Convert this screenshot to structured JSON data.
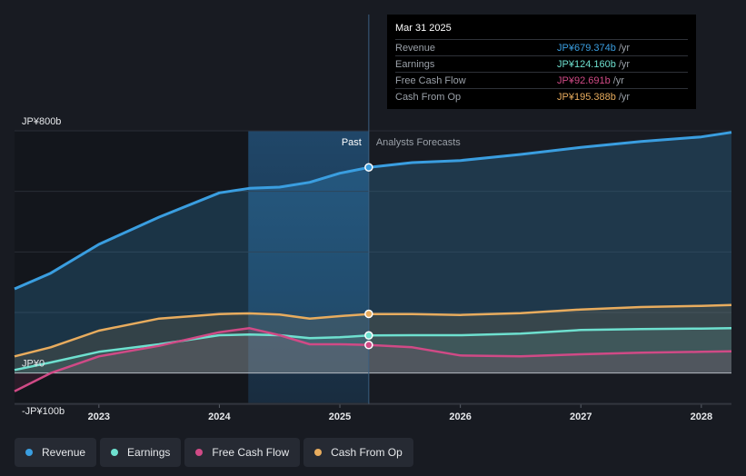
{
  "colors": {
    "background": "#181b22",
    "revenue": "#3a9ee0",
    "earnings": "#6ee0cf",
    "free_cash_flow": "#d04a86",
    "cash_from_op": "#e8ac5e",
    "grid": "#2c3038",
    "text": "#e6e8eb",
    "muted": "#9aa0a8"
  },
  "tooltip": {
    "date": "Mar 31 2025",
    "rows": [
      {
        "label": "Revenue",
        "value": "JP¥679.374b",
        "unit": "/yr",
        "color": "#3a9ee0"
      },
      {
        "label": "Earnings",
        "value": "JP¥124.160b",
        "unit": "/yr",
        "color": "#6ee0cf"
      },
      {
        "label": "Free Cash Flow",
        "value": "JP¥92.691b",
        "unit": "/yr",
        "color": "#d04a86"
      },
      {
        "label": "Cash From Op",
        "value": "JP¥195.388b",
        "unit": "/yr",
        "color": "#e8ac5e"
      }
    ]
  },
  "legend": [
    {
      "label": "Revenue",
      "color": "#3a9ee0",
      "icon": "dot-icon"
    },
    {
      "label": "Earnings",
      "color": "#6ee0cf",
      "icon": "dot-icon"
    },
    {
      "label": "Free Cash Flow",
      "color": "#d04a86",
      "icon": "dot-icon"
    },
    {
      "label": "Cash From Op",
      "color": "#e8ac5e",
      "icon": "dot-icon"
    }
  ],
  "chart_data": {
    "type": "area",
    "title": "",
    "xlabel": "",
    "ylabel": "",
    "unit": "JP¥ billions",
    "y_tick_labels": [
      {
        "value": 800,
        "label": "JP¥800b"
      },
      {
        "value": 0,
        "label": "JP¥0"
      },
      {
        "value": -100,
        "label": "-JP¥100b"
      }
    ],
    "ylim": [
      -100,
      800
    ],
    "xlim": [
      2022.3,
      2028.25
    ],
    "x_ticks": [
      2023,
      2024,
      2025,
      2026,
      2027,
      2028
    ],
    "x_tick_labels": [
      "2023",
      "2024",
      "2025",
      "2026",
      "2027",
      "2028"
    ],
    "past_label": "Past",
    "forecast_label": "Analysts Forecasts",
    "divider_x": 2025.24,
    "highlight_start_x": 2024.24,
    "series": [
      {
        "name": "Revenue",
        "color": "#3a9ee0",
        "points": [
          [
            2022.3,
            278
          ],
          [
            2022.6,
            330
          ],
          [
            2023.0,
            425
          ],
          [
            2023.5,
            515
          ],
          [
            2024.0,
            595
          ],
          [
            2024.25,
            610
          ],
          [
            2024.5,
            614
          ],
          [
            2024.75,
            630
          ],
          [
            2025.0,
            660
          ],
          [
            2025.24,
            679
          ],
          [
            2025.6,
            695
          ],
          [
            2026.0,
            702
          ],
          [
            2026.5,
            722
          ],
          [
            2027.0,
            745
          ],
          [
            2027.5,
            765
          ],
          [
            2028.0,
            780
          ],
          [
            2028.25,
            795
          ]
        ]
      },
      {
        "name": "Earnings",
        "color": "#6ee0cf",
        "points": [
          [
            2022.3,
            10
          ],
          [
            2022.6,
            35
          ],
          [
            2023.0,
            70
          ],
          [
            2023.5,
            95
          ],
          [
            2024.0,
            125
          ],
          [
            2024.25,
            127
          ],
          [
            2024.5,
            125
          ],
          [
            2024.75,
            115
          ],
          [
            2025.0,
            118
          ],
          [
            2025.24,
            124
          ],
          [
            2025.6,
            125
          ],
          [
            2026.0,
            125
          ],
          [
            2026.5,
            130
          ],
          [
            2027.0,
            142
          ],
          [
            2027.5,
            145
          ],
          [
            2028.0,
            147
          ],
          [
            2028.25,
            148
          ]
        ]
      },
      {
        "name": "Free Cash Flow",
        "color": "#d04a86",
        "points": [
          [
            2022.3,
            -60
          ],
          [
            2022.6,
            0
          ],
          [
            2023.0,
            55
          ],
          [
            2023.5,
            90
          ],
          [
            2024.0,
            135
          ],
          [
            2024.25,
            148
          ],
          [
            2024.5,
            125
          ],
          [
            2024.75,
            95
          ],
          [
            2025.0,
            95
          ],
          [
            2025.24,
            93
          ],
          [
            2025.6,
            85
          ],
          [
            2026.0,
            58
          ],
          [
            2026.5,
            55
          ],
          [
            2027.0,
            62
          ],
          [
            2027.5,
            67
          ],
          [
            2028.0,
            70
          ],
          [
            2028.25,
            72
          ]
        ]
      },
      {
        "name": "Cash From Op",
        "color": "#e8ac5e",
        "points": [
          [
            2022.3,
            55
          ],
          [
            2022.6,
            85
          ],
          [
            2023.0,
            140
          ],
          [
            2023.5,
            180
          ],
          [
            2024.0,
            195
          ],
          [
            2024.25,
            197
          ],
          [
            2024.5,
            193
          ],
          [
            2024.75,
            180
          ],
          [
            2025.0,
            188
          ],
          [
            2025.24,
            195
          ],
          [
            2025.6,
            195
          ],
          [
            2026.0,
            192
          ],
          [
            2026.5,
            198
          ],
          [
            2027.0,
            210
          ],
          [
            2027.5,
            218
          ],
          [
            2028.0,
            222
          ],
          [
            2028.25,
            225
          ]
        ]
      }
    ],
    "highlight_points": [
      {
        "series": "Revenue",
        "x": 2025.24,
        "y": 679.374
      },
      {
        "series": "Cash From Op",
        "x": 2025.24,
        "y": 195.388
      },
      {
        "series": "Earnings",
        "x": 2025.24,
        "y": 124.16
      },
      {
        "series": "Free Cash Flow",
        "x": 2025.24,
        "y": 92.691
      }
    ]
  }
}
